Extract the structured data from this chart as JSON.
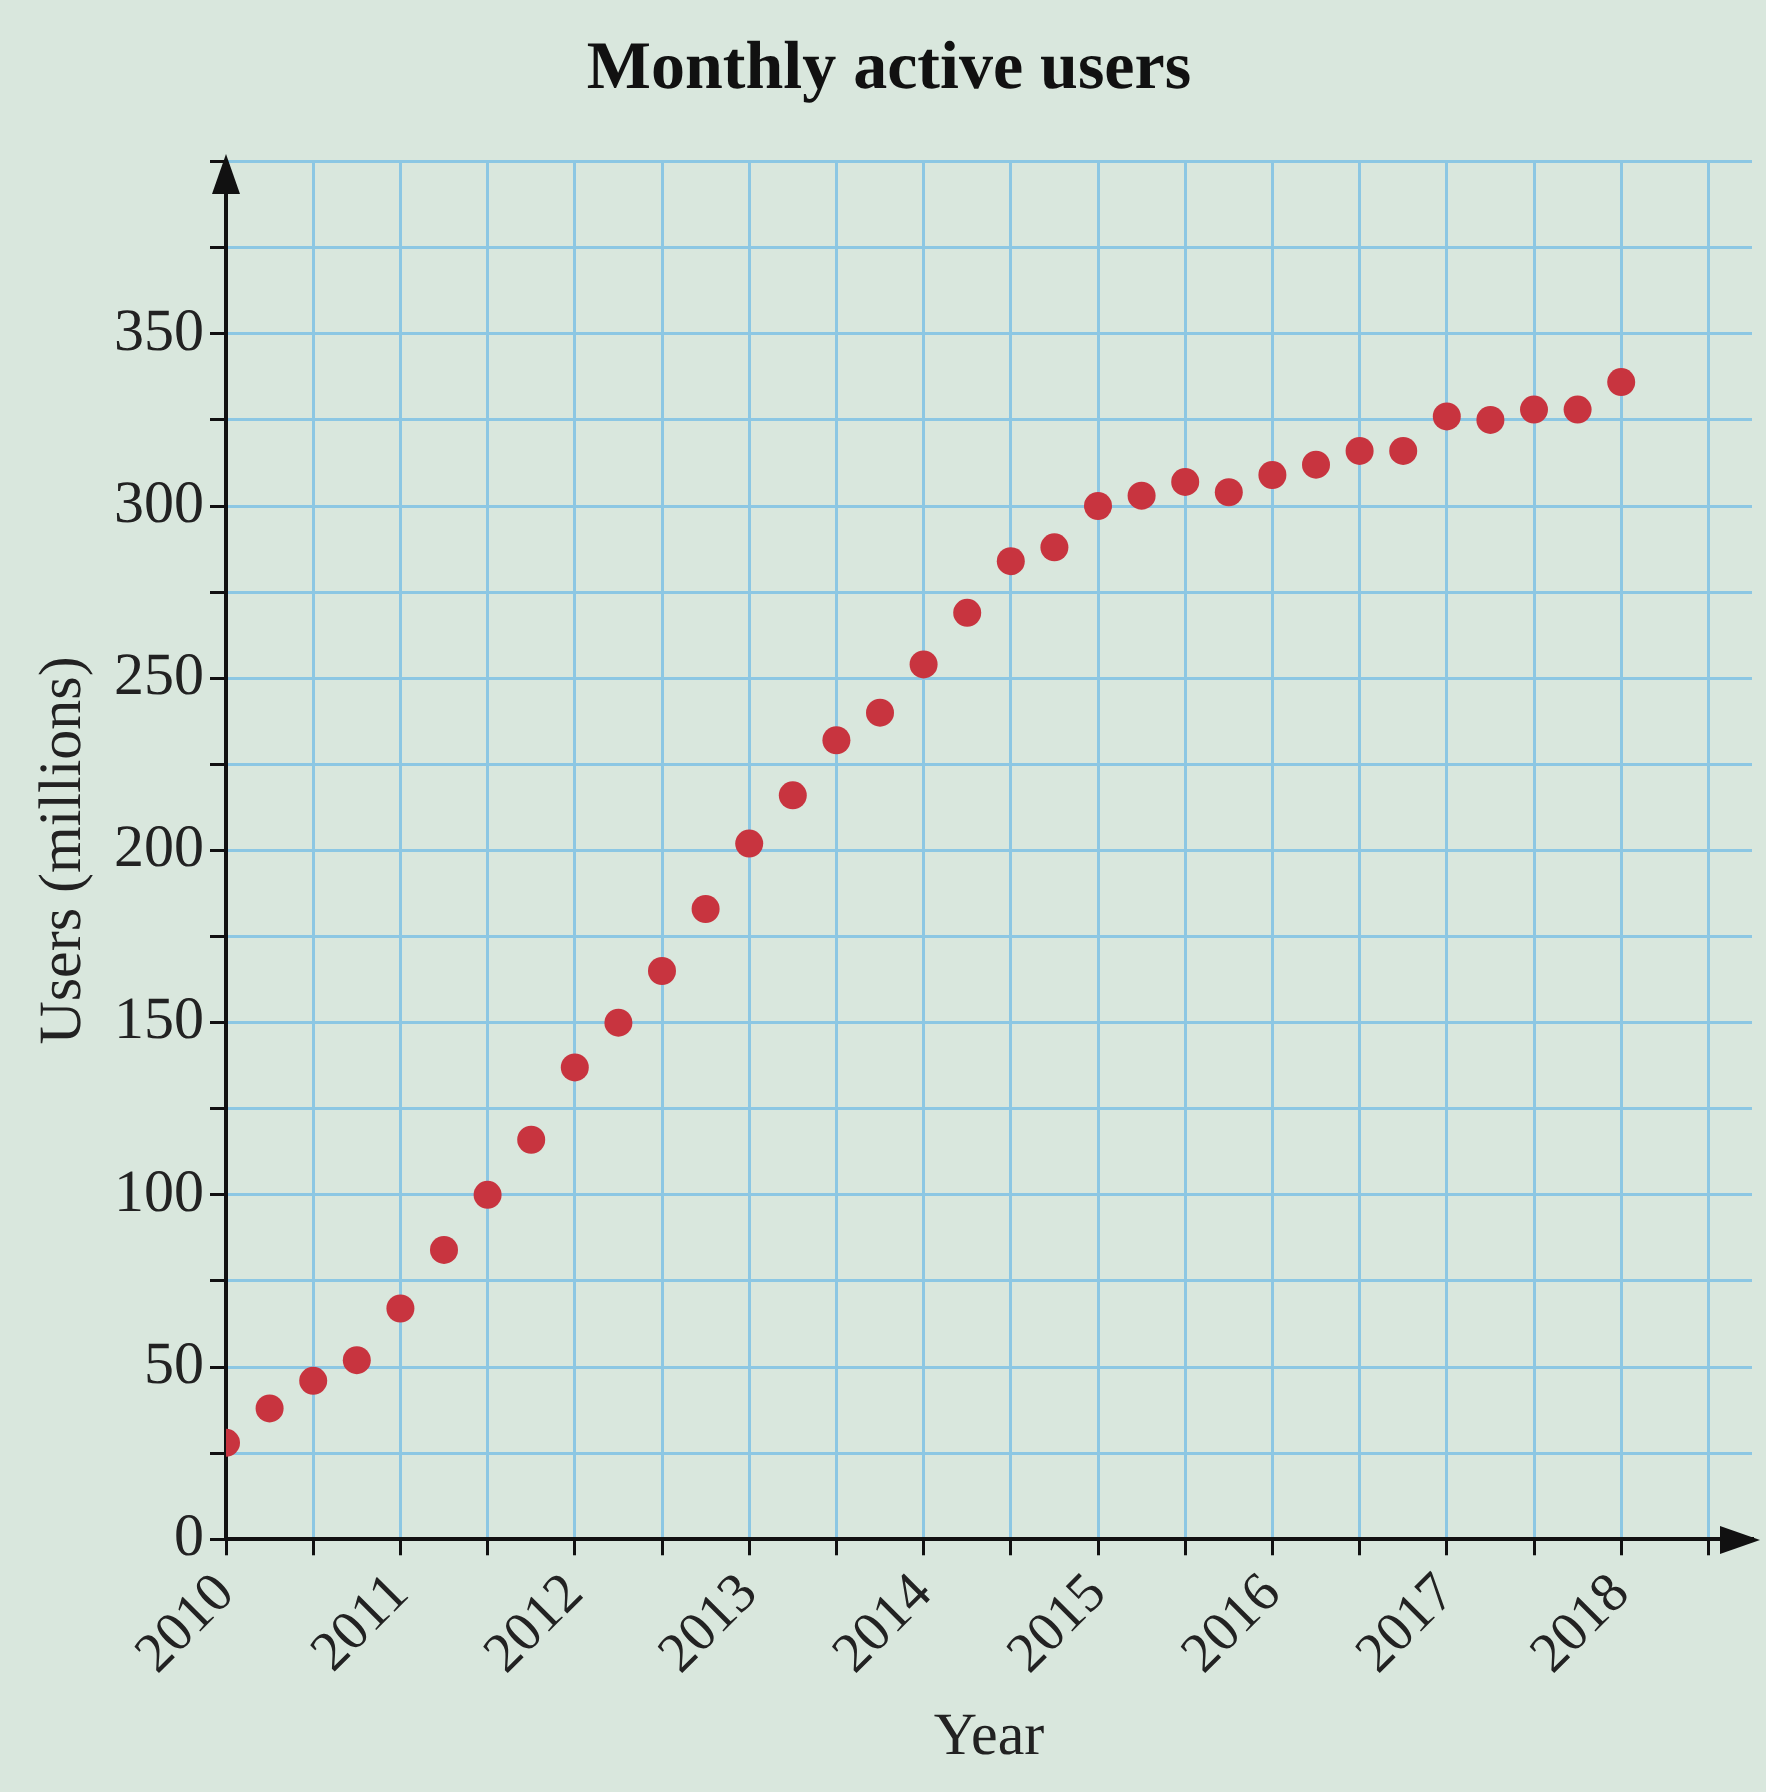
{
  "chart_data": {
    "type": "scatter",
    "title": "Monthly active users",
    "xlabel": "Year",
    "ylabel": "Users (millions)",
    "x": [
      2010,
      2010.25,
      2010.5,
      2010.75,
      2011,
      2011.25,
      2011.5,
      2011.75,
      2012,
      2012.25,
      2012.5,
      2012.75,
      2013,
      2013.25,
      2013.5,
      2013.75,
      2014,
      2014.25,
      2014.5,
      2014.75,
      2015,
      2015.25,
      2015.5,
      2015.75,
      2016,
      2016.25,
      2016.5,
      2016.75,
      2017,
      2017.25,
      2017.5,
      2017.75,
      2018
    ],
    "series": [
      {
        "color": "#c8343f",
        "values": [
          28,
          38,
          46,
          52,
          67,
          84,
          100,
          116,
          137,
          150,
          165,
          183,
          202,
          216,
          232,
          240,
          254,
          269,
          284,
          288,
          300,
          303,
          307,
          304,
          309,
          312,
          316,
          316,
          326,
          325,
          328,
          328,
          336
        ]
      }
    ],
    "xlim": [
      2010,
      2018.75
    ],
    "xticks": [
      2010,
      {
        "value": 2010.5,
        "label": null
      },
      2011,
      {
        "value": 2011.5,
        "label": null
      },
      2012,
      {
        "value": 2012.5,
        "label": null
      },
      2013,
      {
        "value": 2013.5,
        "label": null
      },
      2014,
      {
        "value": 2014.5,
        "label": null
      },
      2015,
      {
        "value": 2015.5,
        "label": null
      },
      2016,
      {
        "value": 2016.5,
        "label": null
      },
      2017,
      {
        "value": 2017.5,
        "label": null
      },
      2018,
      {
        "value": 2018.5,
        "label": null
      }
    ],
    "ylim": [
      0,
      400
    ],
    "yticks": [
      0,
      {
        "value": 25,
        "label": null
      },
      50,
      {
        "value": 75,
        "label": null
      },
      100,
      {
        "value": 125,
        "label": null
      },
      150,
      {
        "value": 175,
        "label": null
      },
      200,
      {
        "value": 225,
        "label": null
      },
      250,
      {
        "value": 275,
        "label": null
      },
      300,
      {
        "value": 325,
        "label": null
      },
      350,
      {
        "value": 375,
        "label": null
      },
      {
        "value": 400,
        "label": null
      }
    ],
    "grid": true,
    "legend": false,
    "marker": "circle"
  }
}
